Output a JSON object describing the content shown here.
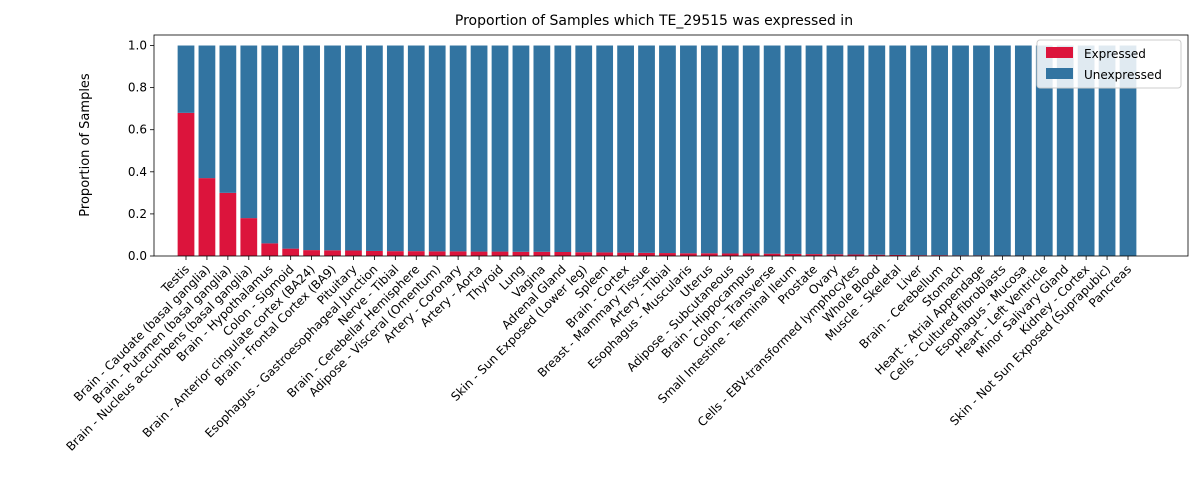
{
  "chart_data": {
    "type": "bar",
    "stacked": true,
    "title": "Proportion of Samples which TE_29515 was expressed in",
    "xlabel": "",
    "ylabel": "Proportion of Samples",
    "ylim": [
      0,
      1.05
    ],
    "yticks": [
      "0.0",
      "0.2",
      "0.4",
      "0.6",
      "0.8",
      "1.0"
    ],
    "legend_position": "top-right",
    "grid": false,
    "categories": [
      "Testis",
      "Brain - Caudate (basal ganglia)",
      "Brain - Putamen (basal ganglia)",
      "Brain - Nucleus accumbens (basal ganglia)",
      "Brain - Hypothalamus",
      "Colon - Sigmoid",
      "Brain - Anterior cingulate cortex (BA24)",
      "Brain - Frontal Cortex (BA9)",
      "Pituitary",
      "Esophagus - Gastroesophageal Junction",
      "Nerve - Tibial",
      "Brain - Cerebellar Hemisphere",
      "Adipose - Visceral (Omentum)",
      "Artery - Coronary",
      "Artery - Aorta",
      "Thyroid",
      "Lung",
      "Vagina",
      "Adrenal Gland",
      "Skin - Sun Exposed (Lower leg)",
      "Spleen",
      "Brain - Cortex",
      "Breast - Mammary Tissue",
      "Artery - Tibial",
      "Esophagus - Muscularis",
      "Uterus",
      "Adipose - Subcutaneous",
      "Brain - Hippocampus",
      "Colon - Transverse",
      "Small Intestine - Terminal Ileum",
      "Prostate",
      "Ovary",
      "Cells - EBV-transformed lymphocytes",
      "Whole Blood",
      "Muscle - Skeletal",
      "Liver",
      "Brain - Cerebellum",
      "Stomach",
      "Heart - Atrial Appendage",
      "Cells - Cultured fibroblasts",
      "Esophagus - Mucosa",
      "Heart - Left Ventricle",
      "Minor Salivary Gland",
      "Kidney - Cortex",
      "Skin - Not Sun Exposed (Suprapubic)",
      "Pancreas"
    ],
    "series": [
      {
        "name": "Expressed",
        "color": "#dc143c",
        "values": [
          0.68,
          0.37,
          0.3,
          0.18,
          0.06,
          0.035,
          0.028,
          0.027,
          0.026,
          0.024,
          0.023,
          0.023,
          0.022,
          0.022,
          0.021,
          0.021,
          0.02,
          0.02,
          0.019,
          0.018,
          0.017,
          0.016,
          0.015,
          0.014,
          0.013,
          0.013,
          0.012,
          0.012,
          0.011,
          0.01,
          0.009,
          0.008,
          0.007,
          0.006,
          0.005,
          0.004,
          0.004,
          0.003,
          0.003,
          0.002,
          0.002,
          0.001,
          0.0,
          0.0,
          0.0,
          0.0
        ]
      },
      {
        "name": "Unexpressed",
        "color": "#3274a1",
        "values": [
          0.32,
          0.63,
          0.7,
          0.82,
          0.94,
          0.965,
          0.972,
          0.973,
          0.974,
          0.976,
          0.977,
          0.977,
          0.978,
          0.978,
          0.979,
          0.979,
          0.98,
          0.98,
          0.981,
          0.982,
          0.983,
          0.984,
          0.985,
          0.986,
          0.987,
          0.987,
          0.988,
          0.988,
          0.989,
          0.99,
          0.991,
          0.992,
          0.993,
          0.994,
          0.995,
          0.996,
          0.996,
          0.997,
          0.997,
          0.998,
          0.998,
          0.999,
          1.0,
          1.0,
          1.0,
          1.0
        ]
      }
    ]
  }
}
